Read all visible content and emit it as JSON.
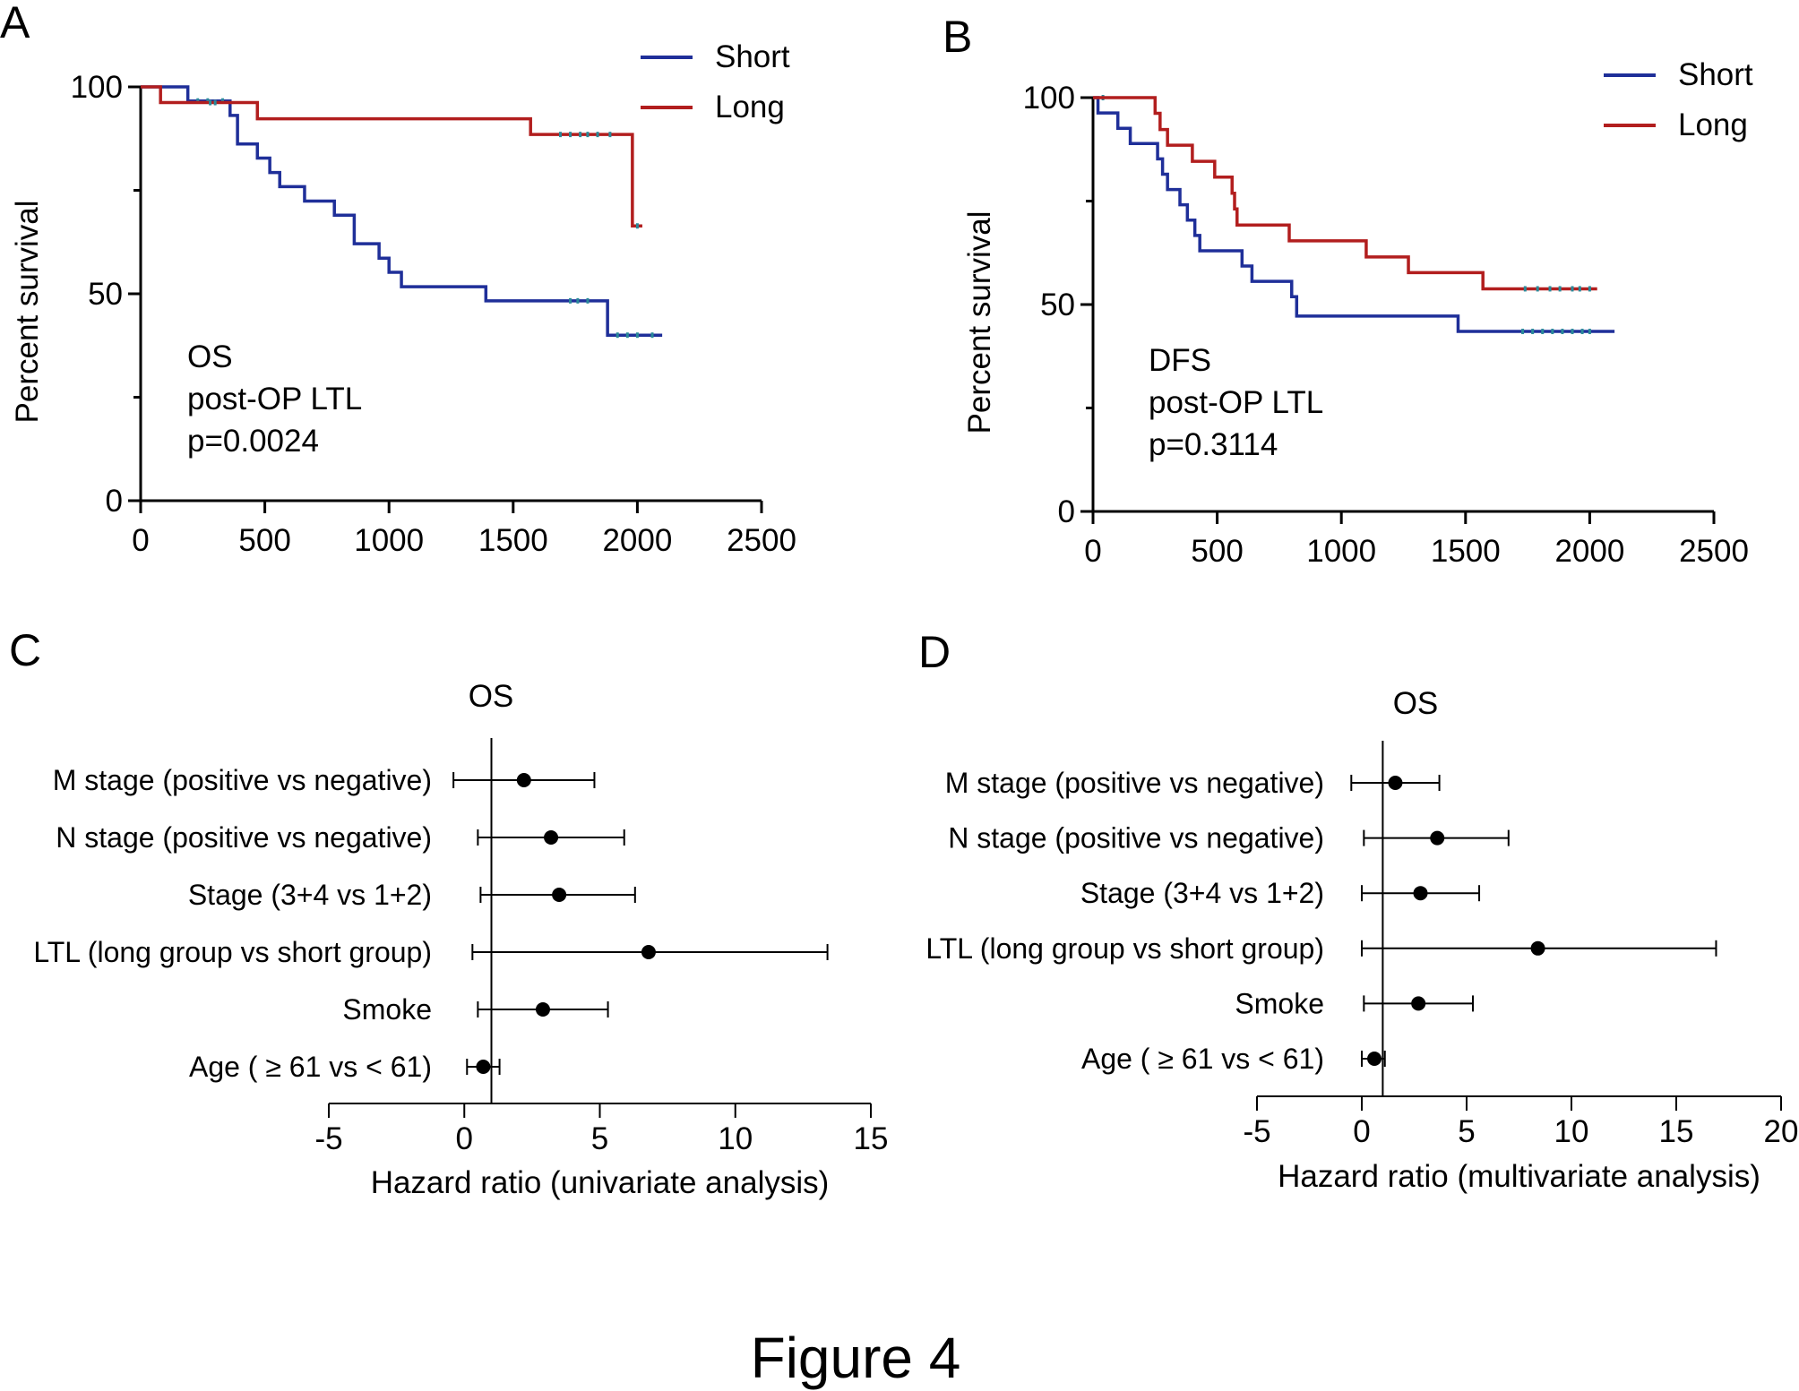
{
  "figure_caption": "Figure 4",
  "chart_data": [
    {
      "panel": "A",
      "type": "line",
      "subtype": "kaplan-meier",
      "title": "",
      "xlabel": "",
      "ylabel": "Percent survival",
      "xlim": [
        0,
        2500
      ],
      "ylim": [
        0,
        100
      ],
      "xticks": [
        0,
        500,
        1000,
        1500,
        2000,
        2500
      ],
      "yticks": [
        0,
        50,
        100
      ],
      "annotation": [
        "OS",
        "post-OP LTL",
        "p=0.0024"
      ],
      "legend_position": "top-right",
      "series": [
        {
          "name": "Short",
          "color": "#1f2f99",
          "steps": [
            [
              0,
              100
            ],
            [
              60,
              100
            ],
            [
              190,
              96.6
            ],
            [
              360,
              93.1
            ],
            [
              390,
              86.2
            ],
            [
              470,
              82.8
            ],
            [
              520,
              79.3
            ],
            [
              560,
              75.9
            ],
            [
              660,
              72.4
            ],
            [
              780,
              69.0
            ],
            [
              860,
              62.1
            ],
            [
              960,
              58.6
            ],
            [
              1000,
              55.2
            ],
            [
              1050,
              51.7
            ],
            [
              1390,
              48.3
            ],
            [
              1880,
              40.0
            ],
            [
              2100,
              40.0
            ]
          ],
          "censored": [
            [
              230,
              96.6
            ],
            [
              270,
              96.6
            ],
            [
              330,
              96.6
            ],
            [
              1730,
              48.3
            ],
            [
              1760,
              48.3
            ],
            [
              1800,
              48.3
            ],
            [
              1920,
              40.0
            ],
            [
              1960,
              40.0
            ],
            [
              2000,
              40.0
            ],
            [
              2060,
              40.0
            ]
          ]
        },
        {
          "name": "Long",
          "color": "#b21e1e",
          "steps": [
            [
              0,
              100
            ],
            [
              80,
              96.2
            ],
            [
              470,
              92.3
            ],
            [
              1570,
              88.5
            ],
            [
              1980,
              66.4
            ],
            [
              2020,
              66.4
            ]
          ],
          "censored": [
            [
              280,
              96.2
            ],
            [
              300,
              96.2
            ],
            [
              1690,
              88.5
            ],
            [
              1730,
              88.5
            ],
            [
              1770,
              88.5
            ],
            [
              1800,
              88.5
            ],
            [
              1840,
              88.5
            ],
            [
              1890,
              88.5
            ],
            [
              2000,
              66.4
            ]
          ]
        }
      ]
    },
    {
      "panel": "B",
      "type": "line",
      "subtype": "kaplan-meier",
      "title": "",
      "xlabel": "",
      "ylabel": "Percent survival",
      "xlim": [
        0,
        2500
      ],
      "ylim": [
        0,
        100
      ],
      "xticks": [
        0,
        500,
        1000,
        1500,
        2000,
        2500
      ],
      "yticks": [
        0,
        50,
        100
      ],
      "annotation": [
        "DFS",
        "post-OP LTL",
        "p=0.3114"
      ],
      "legend_position": "top-right",
      "series": [
        {
          "name": "Short",
          "color": "#1f2f99",
          "steps": [
            [
              0,
              100
            ],
            [
              20,
              96.3
            ],
            [
              100,
              92.6
            ],
            [
              150,
              88.9
            ],
            [
              260,
              85.2
            ],
            [
              280,
              81.5
            ],
            [
              300,
              77.8
            ],
            [
              350,
              74.1
            ],
            [
              380,
              70.4
            ],
            [
              410,
              66.7
            ],
            [
              430,
              63.0
            ],
            [
              600,
              59.3
            ],
            [
              640,
              55.6
            ],
            [
              800,
              51.9
            ],
            [
              820,
              47.2
            ],
            [
              1470,
              43.5
            ],
            [
              2100,
              43.5
            ]
          ],
          "censored": [
            [
              40,
              100
            ],
            [
              1730,
              43.5
            ],
            [
              1770,
              43.5
            ],
            [
              1810,
              43.5
            ],
            [
              1850,
              43.5
            ],
            [
              1890,
              43.5
            ],
            [
              1930,
              43.5
            ],
            [
              1970,
              43.5
            ],
            [
              2000,
              43.5
            ]
          ]
        },
        {
          "name": "Long",
          "color": "#b21e1e",
          "steps": [
            [
              0,
              100
            ],
            [
              250,
              96.2
            ],
            [
              270,
              92.3
            ],
            [
              300,
              88.5
            ],
            [
              400,
              84.6
            ],
            [
              490,
              80.8
            ],
            [
              560,
              76.9
            ],
            [
              570,
              73.1
            ],
            [
              580,
              69.2
            ],
            [
              790,
              65.4
            ],
            [
              1100,
              61.5
            ],
            [
              1270,
              57.7
            ],
            [
              1570,
              53.8
            ],
            [
              2030,
              53.8
            ]
          ],
          "censored": [
            [
              1740,
              53.8
            ],
            [
              1790,
              53.8
            ],
            [
              1840,
              53.8
            ],
            [
              1880,
              53.8
            ],
            [
              1930,
              53.8
            ],
            [
              1960,
              53.8
            ],
            [
              2000,
              53.8
            ]
          ]
        }
      ]
    },
    {
      "panel": "C",
      "type": "scatter",
      "subtype": "forest",
      "title": "OS",
      "xlabel": "Hazard ratio (univariate analysis)",
      "ylabel": "",
      "xlim": [
        -5,
        15
      ],
      "xticks": [
        -5,
        0,
        5,
        10,
        15
      ],
      "reference_line": 1,
      "rows": [
        {
          "label": "M stage (positive vs negative)",
          "hr": 2.2,
          "lower": -0.4,
          "upper": 4.8
        },
        {
          "label": "N stage (positive vs negative)",
          "hr": 3.2,
          "lower": 0.5,
          "upper": 5.9
        },
        {
          "label": "Stage (3+4 vs 1+2)",
          "hr": 3.5,
          "lower": 0.6,
          "upper": 6.3
        },
        {
          "label": "LTL (long group vs short group)",
          "hr": 6.8,
          "lower": 0.3,
          "upper": 13.4
        },
        {
          "label": "Smoke",
          "hr": 2.9,
          "lower": 0.5,
          "upper": 5.3
        },
        {
          "label": "Age ( ≥ 61 vs < 61)",
          "hr": 0.7,
          "lower": 0.1,
          "upper": 1.3
        }
      ]
    },
    {
      "panel": "D",
      "type": "scatter",
      "subtype": "forest",
      "title": "OS",
      "xlabel": "Hazard ratio (multivariate analysis)",
      "ylabel": "",
      "xlim": [
        -5,
        20
      ],
      "xticks": [
        -5,
        0,
        5,
        10,
        15,
        20
      ],
      "reference_line": 1,
      "rows": [
        {
          "label": "M stage (positive vs negative)",
          "hr": 1.6,
          "lower": -0.5,
          "upper": 3.7
        },
        {
          "label": "N stage (positive vs negative)",
          "hr": 3.6,
          "lower": 0.1,
          "upper": 7.0
        },
        {
          "label": "Stage (3+4 vs 1+2)",
          "hr": 2.8,
          "lower": 0.0,
          "upper": 5.6
        },
        {
          "label": "LTL (long group vs short group)",
          "hr": 8.4,
          "lower": 0.0,
          "upper": 16.9
        },
        {
          "label": "Smoke",
          "hr": 2.7,
          "lower": 0.1,
          "upper": 5.3
        },
        {
          "label": "Age ( ≥ 61 vs < 61)",
          "hr": 0.6,
          "lower": 0.0,
          "upper": 1.1
        }
      ]
    }
  ]
}
